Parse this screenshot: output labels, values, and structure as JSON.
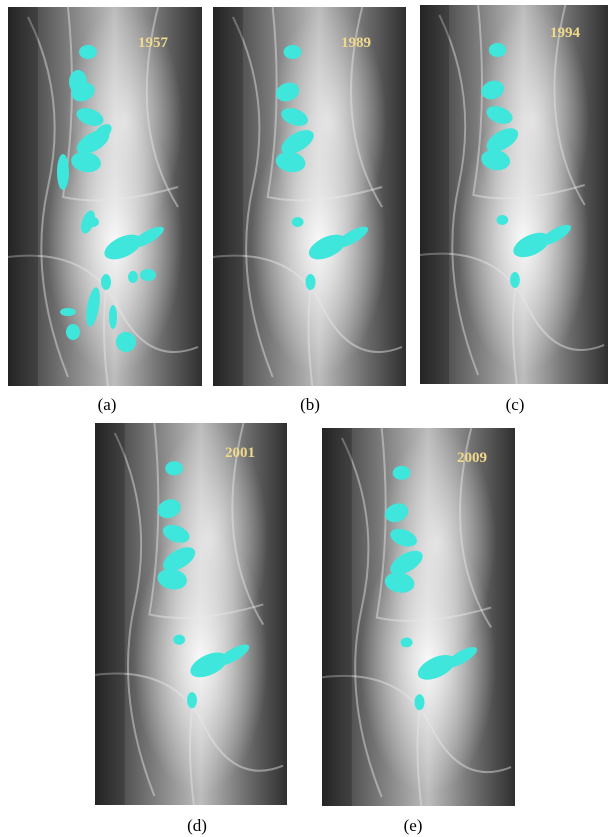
{
  "panels": [
    {
      "year": "1957",
      "caption": "(a)"
    },
    {
      "year": "1989",
      "caption": "(b)"
    },
    {
      "year": "1994",
      "caption": "(c)"
    },
    {
      "year": "2001",
      "caption": "(d)"
    },
    {
      "year": "2009",
      "caption": "(e)"
    }
  ]
}
